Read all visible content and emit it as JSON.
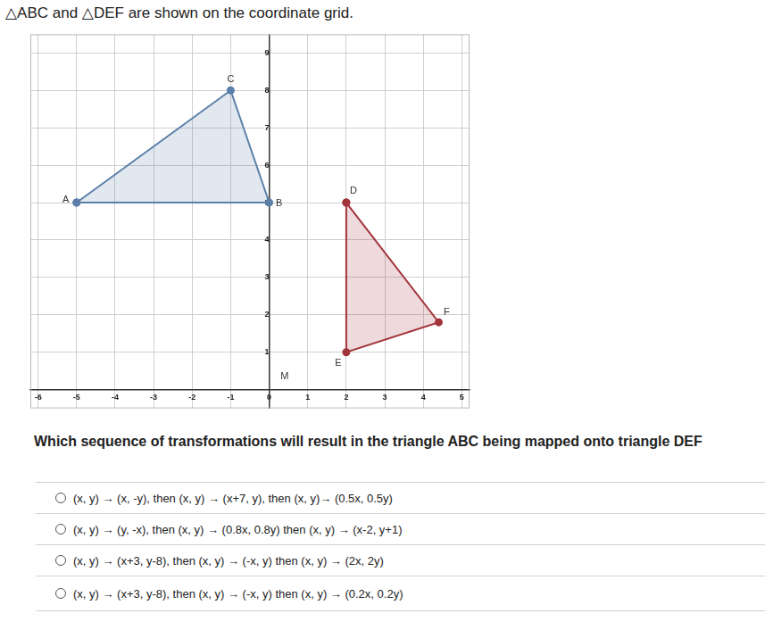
{
  "header": {
    "title": "△ABC and △DEF are shown on the coordinate grid."
  },
  "chart_data": {
    "type": "scatter",
    "xlim": [
      -6.2,
      5.2
    ],
    "ylim": [
      -0.5,
      9.5
    ],
    "xticks": [
      -6,
      -5,
      -4,
      -3,
      -2,
      -1,
      0,
      1,
      2,
      3,
      4,
      5
    ],
    "yticks": [
      1,
      2,
      3,
      4,
      5,
      6,
      7,
      8,
      9
    ],
    "grid": true,
    "series": [
      {
        "color": "#5b7fa8",
        "points": [
          {
            "label": "A",
            "x": -5,
            "y": 5
          },
          {
            "label": "B",
            "x": 0,
            "y": 5
          },
          {
            "label": "C",
            "x": -1,
            "y": 8
          }
        ]
      },
      {
        "color": "#a3343c",
        "points": [
          {
            "label": "D",
            "x": 2,
            "y": 5
          },
          {
            "label": "E",
            "x": 2,
            "y": 1
          },
          {
            "label": "F",
            "x": 4.4,
            "y": 1.8
          }
        ]
      }
    ],
    "annotations": [
      {
        "text": "M",
        "x": 0.4,
        "y": 0.35
      }
    ]
  },
  "question": "Which sequence of transformations will result in the triangle ABC being mapped onto triangle DEF",
  "options": [
    "(x, y) → (x, -y), then (x, y) → (x+7, y), then (x, y)→ (0.5x, 0.5y)",
    "(x, y) → (y, -x), then (x, y) → (0.8x, 0.8y) then (x, y) → (x-2, y+1)",
    "(x, y) → (x+3, y-8), then (x, y) → (-x, y) then (x, y) → (2x, 2y)",
    "(x, y) → (x+3, y-8), then (x, y) → (-x, y) then (x, y) → (0.2x, 0.2y)"
  ]
}
